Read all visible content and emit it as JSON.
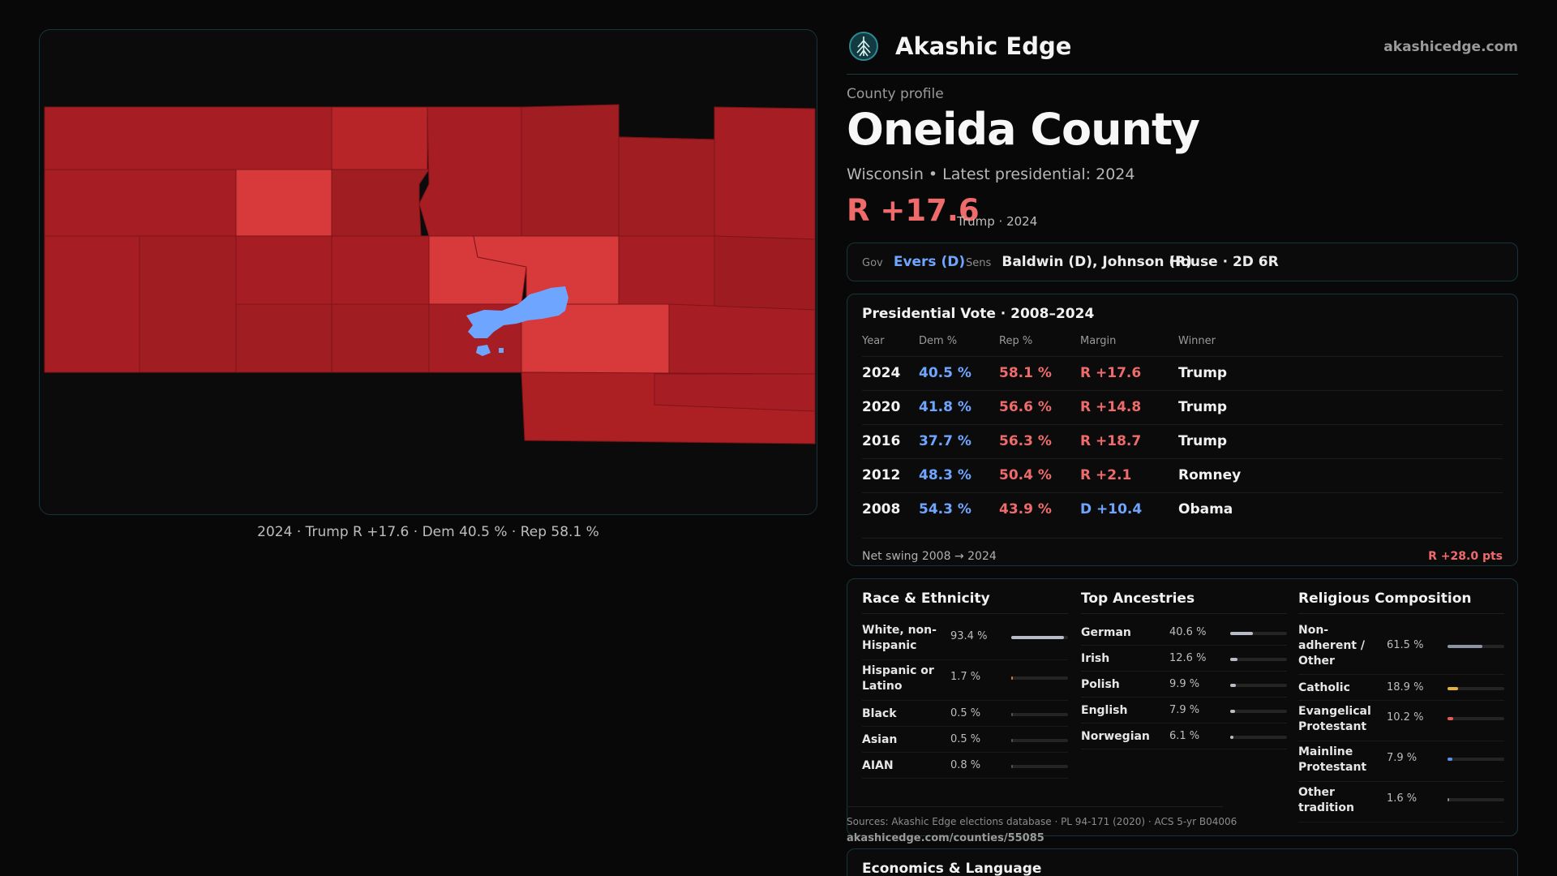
{
  "map": {
    "caption": "2024 · Trump R +17.6 · Dem 40.5 % · Rep 58.1 %"
  },
  "header": {
    "brand": "Akashic Edge",
    "domain": "akashicedge.com",
    "logo_icon": "tree-emblem-icon"
  },
  "profile": {
    "eyebrow": "County profile",
    "title": "Oneida County",
    "subline": "Wisconsin • Latest presidential: 2024",
    "margin": "R +17.6",
    "margin_note": "Trump · 2024"
  },
  "officials": {
    "gov_label": "Gov",
    "gov_value": "Evers (D)",
    "sens_label": "Sens",
    "sens_value": "Baldwin (D), Johnson (R)",
    "house_value": "House · 2D 6R"
  },
  "presidential": {
    "title": "Presidential Vote · 2008–2024",
    "headers": [
      "Year",
      "Dem %",
      "Rep %",
      "Margin",
      "Winner"
    ],
    "rows": [
      {
        "year": "2024",
        "dem": "40.5 %",
        "rep": "58.1 %",
        "margin": "R +17.6",
        "party": "R",
        "winner": "Trump"
      },
      {
        "year": "2020",
        "dem": "41.8 %",
        "rep": "56.6 %",
        "margin": "R +14.8",
        "party": "R",
        "winner": "Trump"
      },
      {
        "year": "2016",
        "dem": "37.7 %",
        "rep": "56.3 %",
        "margin": "R +18.7",
        "party": "R",
        "winner": "Trump"
      },
      {
        "year": "2012",
        "dem": "48.3 %",
        "rep": "50.4 %",
        "margin": "R +2.1",
        "party": "R",
        "winner": "Romney"
      },
      {
        "year": "2008",
        "dem": "54.3 %",
        "rep": "43.9 %",
        "margin": "D +10.4",
        "party": "D",
        "winner": "Obama"
      }
    ],
    "swing_label": "Net swing 2008 → 2024",
    "swing_value": "R +28.0 pts"
  },
  "race": {
    "title": "Race & Ethnicity",
    "rows": [
      {
        "label": "White, non-Hispanic",
        "pct": "93.4 %",
        "value": 93.4,
        "color": "#b9bcc6"
      },
      {
        "label": "Hispanic or Latino",
        "pct": "1.7 %",
        "value": 1.7,
        "color": "#e0733a"
      },
      {
        "label": "Black",
        "pct": "0.5 %",
        "value": 0.5,
        "color": "#555555"
      },
      {
        "label": "Asian",
        "pct": "0.5 %",
        "value": 0.5,
        "color": "#555555"
      },
      {
        "label": "AIAN",
        "pct": "0.8 %",
        "value": 0.8,
        "color": "#555555"
      }
    ]
  },
  "ancestry": {
    "title": "Top Ancestries",
    "rows": [
      {
        "label": "German",
        "pct": "40.6 %",
        "value": 40.6,
        "color": "#b9bcc6"
      },
      {
        "label": "Irish",
        "pct": "12.6 %",
        "value": 12.6,
        "color": "#b9bcc6"
      },
      {
        "label": "Polish",
        "pct": "9.9 %",
        "value": 9.9,
        "color": "#b9bcc6"
      },
      {
        "label": "English",
        "pct": "7.9 %",
        "value": 7.9,
        "color": "#b9bcc6"
      },
      {
        "label": "Norwegian",
        "pct": "6.1 %",
        "value": 6.1,
        "color": "#b9bcc6"
      }
    ]
  },
  "religion": {
    "title": "Religious Composition",
    "rows": [
      {
        "label": "Non-adherent / Other",
        "pct": "61.5 %",
        "value": 61.5,
        "color": "#8c93a3"
      },
      {
        "label": "Catholic",
        "pct": "18.9 %",
        "value": 18.9,
        "color": "#e8b23a"
      },
      {
        "label": "Evangelical Protestant",
        "pct": "10.2 %",
        "value": 10.2,
        "color": "#e85a5a"
      },
      {
        "label": "Mainline Protestant",
        "pct": "7.9 %",
        "value": 7.9,
        "color": "#5a8fe8"
      },
      {
        "label": "Other tradition",
        "pct": "1.6 %",
        "value": 1.6,
        "color": "#888888"
      }
    ]
  },
  "sources": {
    "text": "Sources: Akashic Edge elections database · PL 94-171 (2020) · ACS 5-yr B04006",
    "url": "akashicedge.com/counties/55085"
  },
  "economics": {
    "title": "Economics & Language"
  },
  "colors": {
    "rep": "#ef6b6b",
    "dem": "#6ea6ff",
    "accent_border": "#17353a"
  }
}
